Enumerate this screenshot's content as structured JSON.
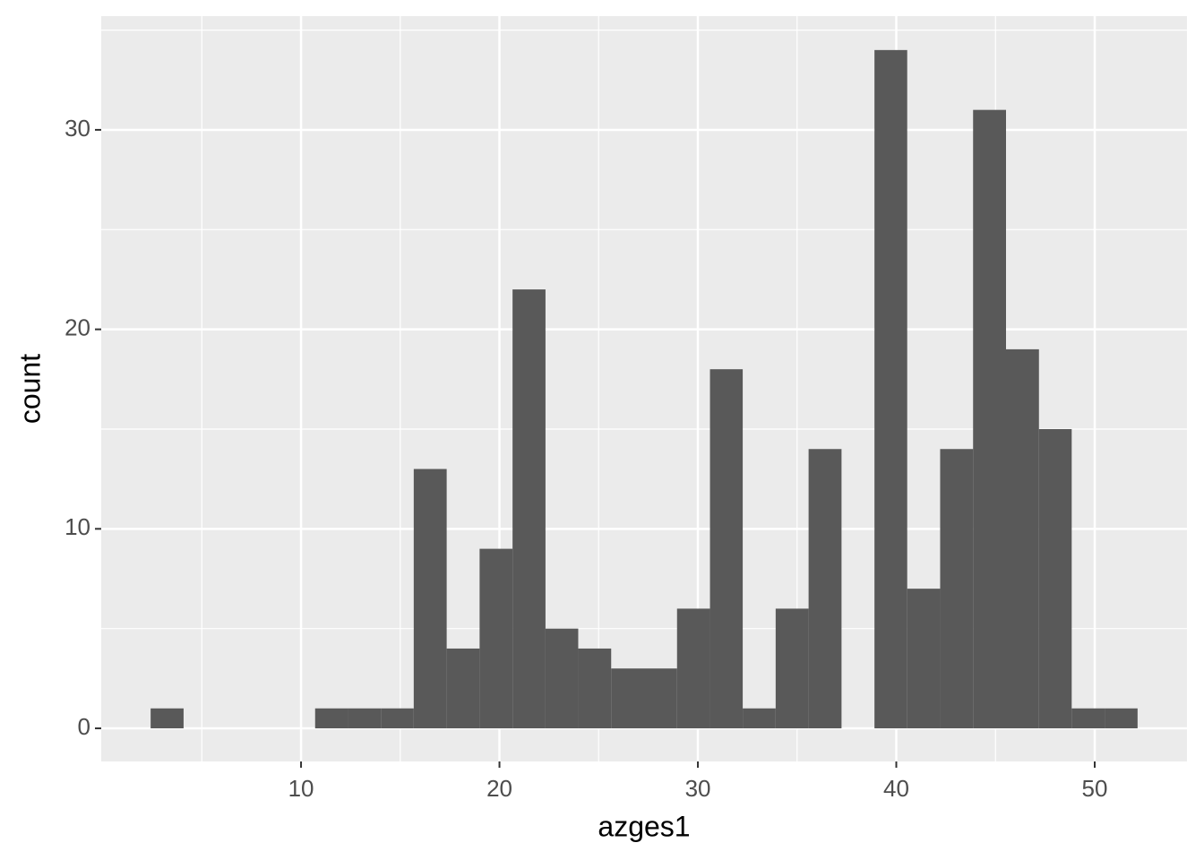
{
  "chart_data": {
    "type": "histogram",
    "x_label": "azges1",
    "y_label": "count",
    "bins": [
      2.42,
      4.08,
      5.74,
      7.39,
      9.05,
      10.71,
      12.37,
      14.03,
      15.68,
      17.34,
      19.0,
      20.66,
      22.32,
      23.97,
      25.63,
      27.29,
      28.95,
      30.61,
      32.26,
      33.92,
      35.58,
      37.24,
      38.9,
      40.55,
      42.21,
      43.87,
      45.53,
      47.19,
      48.84,
      50.5,
      52.16
    ],
    "values": [
      1,
      0,
      0,
      0,
      0,
      1,
      1,
      1,
      13,
      4,
      9,
      22,
      5,
      4,
      3,
      3,
      6,
      18,
      1,
      6,
      14,
      0,
      34,
      7,
      14,
      31,
      19,
      15,
      1,
      1
    ],
    "color": "#595959",
    "xlim": [
      -0.07,
      54.65
    ],
    "xticks": [
      10,
      20,
      30,
      40,
      50
    ],
    "ylim": [
      -1.66,
      35.7
    ],
    "yticks": [
      0,
      10,
      20,
      30
    ],
    "grid": true,
    "minor_grid": true
  }
}
